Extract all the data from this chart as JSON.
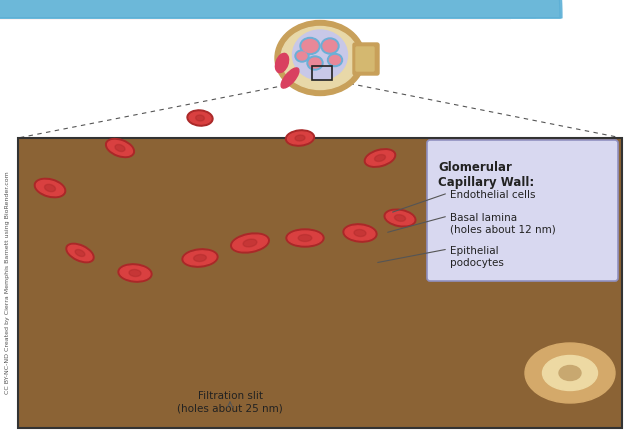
{
  "bg_color": "#ffffff",
  "main_box_color": "#8B6335",
  "capillary_lumen_color": "#F5C5C5",
  "endothelial_color": "#C8393D",
  "basal_lamina_color": "#B0E0E8",
  "basal_lamina_inner_color": "#E8F8FA",
  "podocyte_color": "#5BAFD6",
  "podocyte_fill": "#7EC8E3",
  "rbc_color": "#C8393D",
  "rbc_fill": "#D94040",
  "outer_tissue_color": "#8B6335",
  "outer_cell_color": "#D4A96A",
  "outer_cell_fill": "#EDD9A3",
  "legend_box_color": "#D8D8F0",
  "legend_border_color": "#9090C0",
  "title": "Glomerular\nCapillary Wall:",
  "label1": "Endothelial cells",
  "label2": "Basal lamina\n(holes about 12 nm)",
  "label3": "Epithelial\npodocytes",
  "label4": "Filtration slit\n(holes about 25 nm)",
  "cc_text": "CC BY-NC-ND Created by Cierra Memphis Barnett using BioRender.com",
  "border_color": "#333333"
}
